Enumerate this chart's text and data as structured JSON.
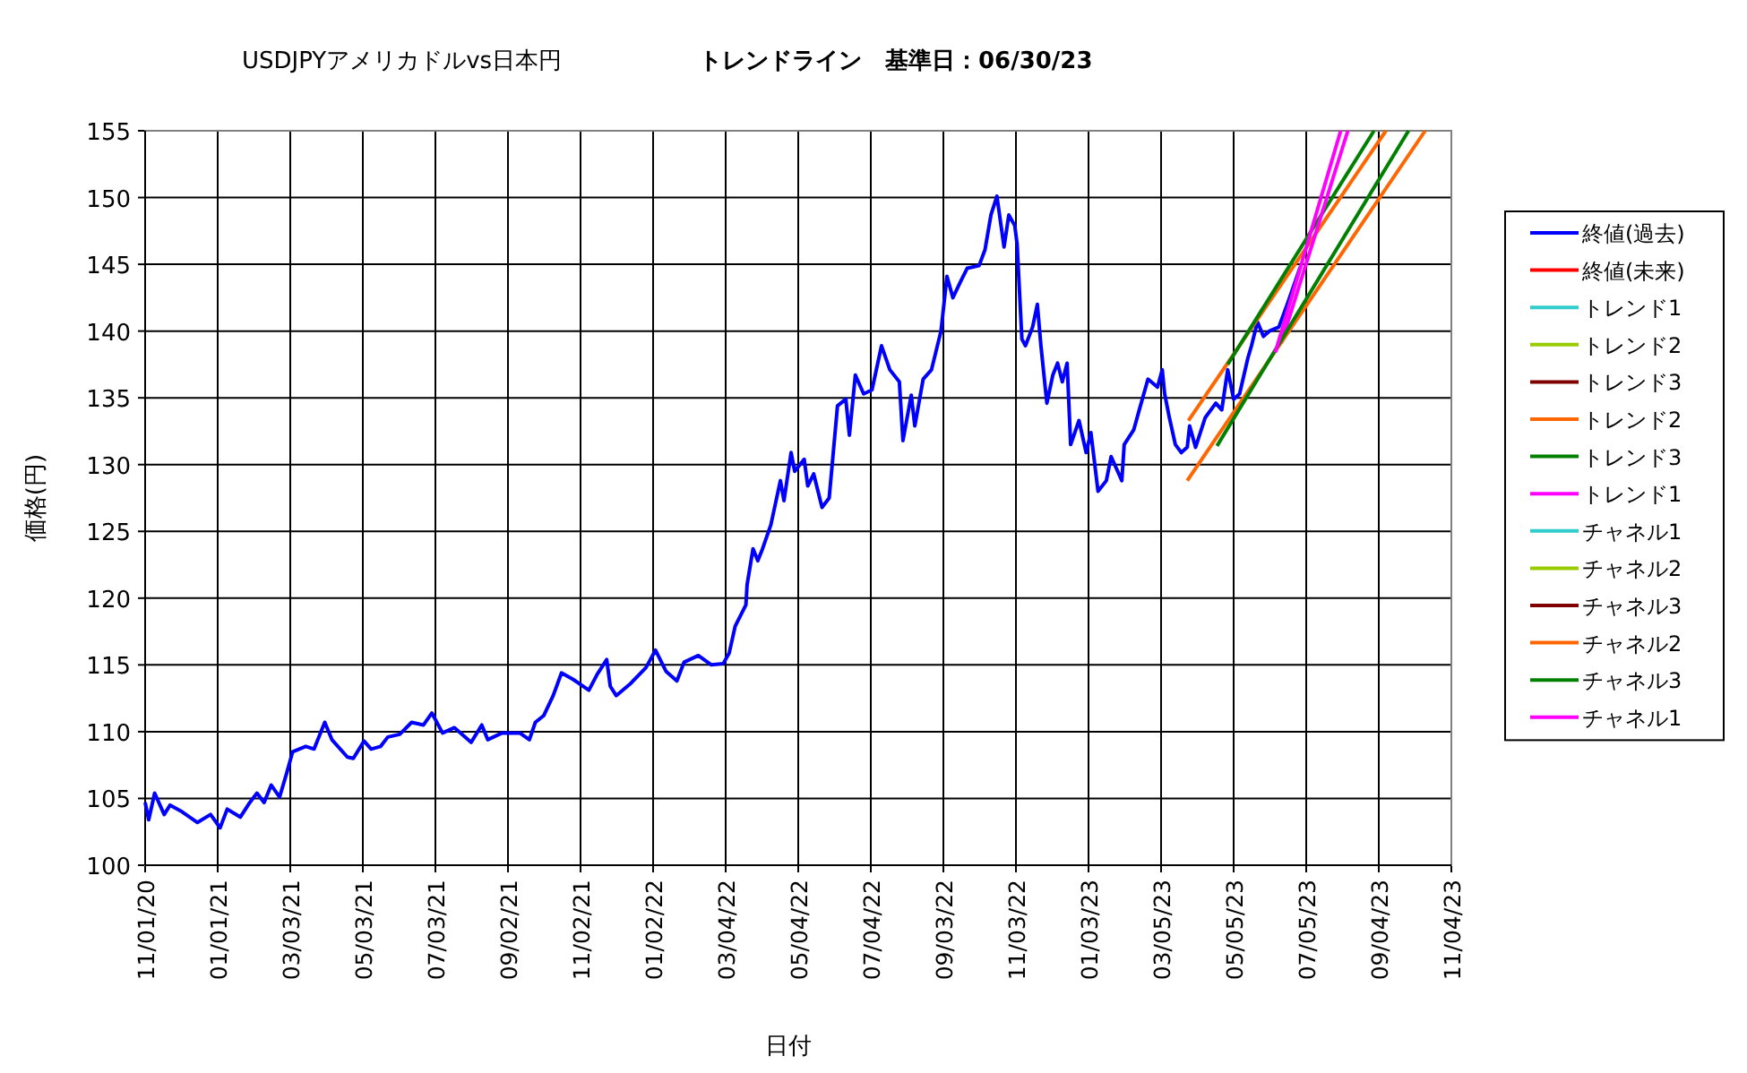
{
  "chart_data": {
    "type": "line",
    "title": "USDJPYアメリカドルvs日本円",
    "subtitle": "トレンドライン　基準日：06/30/23",
    "xlabel": "日付",
    "ylabel": "価格(円)",
    "xlim": [
      "2020-11-01",
      "2023-11-04"
    ],
    "ylim": [
      100,
      155
    ],
    "xticks": [
      {
        "value": "2020-11-01",
        "label": "11/01/20"
      },
      {
        "value": "2021-01-01",
        "label": "01/01/21"
      },
      {
        "value": "2021-03-03",
        "label": "03/03/21"
      },
      {
        "value": "2021-05-03",
        "label": "05/03/21"
      },
      {
        "value": "2021-07-03",
        "label": "07/03/21"
      },
      {
        "value": "2021-09-02",
        "label": "09/02/21"
      },
      {
        "value": "2021-11-02",
        "label": "11/02/21"
      },
      {
        "value": "2022-01-02",
        "label": "01/02/22"
      },
      {
        "value": "2022-03-04",
        "label": "03/04/22"
      },
      {
        "value": "2022-05-04",
        "label": "05/04/22"
      },
      {
        "value": "2022-07-04",
        "label": "07/04/22"
      },
      {
        "value": "2022-09-03",
        "label": "09/03/22"
      },
      {
        "value": "2022-11-03",
        "label": "11/03/22"
      },
      {
        "value": "2023-01-03",
        "label": "01/03/23"
      },
      {
        "value": "2023-03-05",
        "label": "03/05/23"
      },
      {
        "value": "2023-05-05",
        "label": "05/05/23"
      },
      {
        "value": "2023-07-05",
        "label": "07/05/23"
      },
      {
        "value": "2023-09-04",
        "label": "09/04/23"
      },
      {
        "value": "2023-11-04",
        "label": "11/04/23"
      }
    ],
    "yticks": [
      100,
      105,
      110,
      115,
      120,
      125,
      130,
      135,
      140,
      145,
      150,
      155
    ],
    "grid": true,
    "legend": "right",
    "marker": "none",
    "line_style": "solid",
    "series": [
      {
        "name": "終値(過去)",
        "color": "#0000ff",
        "x": [
          "2020-11-01",
          "2020-11-04",
          "2020-11-09",
          "2020-11-17",
          "2020-11-22",
          "2020-12-02",
          "2020-12-15",
          "2020-12-26",
          "2021-01-03",
          "2021-01-09",
          "2021-01-20",
          "2021-01-28",
          "2021-02-03",
          "2021-02-09",
          "2021-02-15",
          "2021-02-22",
          "2021-02-28",
          "2021-03-05",
          "2021-03-16",
          "2021-03-23",
          "2021-04-01",
          "2021-04-07",
          "2021-04-20",
          "2021-04-25",
          "2021-05-04",
          "2021-05-10",
          "2021-05-18",
          "2021-05-24",
          "2021-06-03",
          "2021-06-13",
          "2021-06-23",
          "2021-06-30",
          "2021-07-09",
          "2021-07-19",
          "2021-08-02",
          "2021-08-11",
          "2021-08-16",
          "2021-08-28",
          "2021-09-12",
          "2021-09-20",
          "2021-09-25",
          "2021-10-02",
          "2021-10-10",
          "2021-10-17",
          "2021-10-27",
          "2021-11-09",
          "2021-11-16",
          "2021-11-24",
          "2021-11-27",
          "2021-12-02",
          "2021-12-14",
          "2021-12-27",
          "2022-01-04",
          "2022-01-13",
          "2022-01-22",
          "2022-01-28",
          "2022-02-09",
          "2022-02-20",
          "2022-03-02",
          "2022-03-07",
          "2022-03-12",
          "2022-03-21",
          "2022-03-22",
          "2022-03-27",
          "2022-03-31",
          "2022-04-04",
          "2022-04-11",
          "2022-04-19",
          "2022-04-22",
          "2022-04-28",
          "2022-05-01",
          "2022-05-09",
          "2022-05-12",
          "2022-05-17",
          "2022-05-24",
          "2022-05-30",
          "2022-06-06",
          "2022-06-13",
          "2022-06-16",
          "2022-06-21",
          "2022-06-28",
          "2022-07-05",
          "2022-07-13",
          "2022-07-20",
          "2022-07-28",
          "2022-07-31",
          "2022-08-07",
          "2022-08-10",
          "2022-08-17",
          "2022-08-24",
          "2022-09-01",
          "2022-09-06",
          "2022-09-11",
          "2022-09-18",
          "2022-09-23",
          "2022-10-03",
          "2022-10-08",
          "2022-10-13",
          "2022-10-18",
          "2022-10-24",
          "2022-10-28",
          "2022-11-02",
          "2022-11-04",
          "2022-11-08",
          "2022-11-11",
          "2022-11-17",
          "2022-11-21",
          "2022-11-24",
          "2022-11-29",
          "2022-12-04",
          "2022-12-08",
          "2022-12-12",
          "2022-12-16",
          "2022-12-19",
          "2022-12-26",
          "2023-01-01",
          "2023-01-05",
          "2023-01-11",
          "2023-01-18",
          "2023-01-22",
          "2023-01-31",
          "2023-02-02",
          "2023-02-10",
          "2023-02-15",
          "2023-02-22",
          "2023-03-02",
          "2023-03-06",
          "2023-03-08",
          "2023-03-12",
          "2023-03-17",
          "2023-03-22",
          "2023-03-27",
          "2023-03-29",
          "2023-04-03",
          "2023-04-11",
          "2023-04-20",
          "2023-04-25",
          "2023-04-30",
          "2023-05-05",
          "2023-05-10",
          "2023-05-17",
          "2023-05-20",
          "2023-05-25",
          "2023-05-30",
          "2023-06-04",
          "2023-06-12",
          "2023-06-19",
          "2023-06-30"
        ],
        "values": [
          104.7,
          103.4,
          105.4,
          103.8,
          104.5,
          104.0,
          103.2,
          103.8,
          102.8,
          104.2,
          103.6,
          104.7,
          105.4,
          104.7,
          106.0,
          105.1,
          106.9,
          108.5,
          108.9,
          108.7,
          110.7,
          109.4,
          108.1,
          108.0,
          109.3,
          108.7,
          108.9,
          109.6,
          109.8,
          110.7,
          110.5,
          111.4,
          109.9,
          110.3,
          109.2,
          110.5,
          109.4,
          109.9,
          109.9,
          109.4,
          110.7,
          111.2,
          112.7,
          114.4,
          113.9,
          113.1,
          114.3,
          115.4,
          113.4,
          112.7,
          113.6,
          114.8,
          116.1,
          114.5,
          113.8,
          115.2,
          115.7,
          115.0,
          115.1,
          115.9,
          117.9,
          119.5,
          121.0,
          123.7,
          122.8,
          123.7,
          125.5,
          128.8,
          127.3,
          130.9,
          129.5,
          130.4,
          128.4,
          129.3,
          126.8,
          127.5,
          134.4,
          134.9,
          132.2,
          136.7,
          135.3,
          135.6,
          138.9,
          137.1,
          136.2,
          131.8,
          135.2,
          132.9,
          136.4,
          137.1,
          140.0,
          144.1,
          142.5,
          143.8,
          144.7,
          144.9,
          146.1,
          148.7,
          150.1,
          146.3,
          148.7,
          147.9,
          146.5,
          139.4,
          138.9,
          140.3,
          142.0,
          138.9,
          134.6,
          136.7,
          137.6,
          136.2,
          137.6,
          131.5,
          133.3,
          130.9,
          132.4,
          128.0,
          128.8,
          130.6,
          128.8,
          131.5,
          132.6,
          134.2,
          136.4,
          135.8,
          137.1,
          135.3,
          133.5,
          131.5,
          130.9,
          131.3,
          132.9,
          131.3,
          133.5,
          134.6,
          134.1,
          137.1,
          134.9,
          135.3,
          138.0,
          138.9,
          140.7,
          139.6,
          140.0,
          140.3,
          142.0,
          144.8
        ]
      },
      {
        "name": "終値(未来)",
        "color": "#ff0000"
      },
      {
        "name": "トレンド1",
        "color": "#33cccc"
      },
      {
        "name": "トレンド2",
        "color": "#99cc00"
      },
      {
        "name": "トレンド3",
        "color": "#800000"
      },
      {
        "name": "トレンド2",
        "color": "#ff6600",
        "x": [
          "2023-03-28",
          "2023-09-10"
        ],
        "values": [
          133.3,
          155
        ]
      },
      {
        "name": "トレンド3",
        "color": "#008000",
        "x": [
          "2023-04-30",
          "2023-08-31"
        ],
        "values": [
          137.5,
          155
        ]
      },
      {
        "name": "トレンド1",
        "color": "#ff00ff",
        "x": [
          "2023-06-14",
          "2023-08-09"
        ],
        "values": [
          139.1,
          155
        ]
      },
      {
        "name": "チャネル1",
        "color": "#33cccc"
      },
      {
        "name": "チャネル2",
        "color": "#99cc00"
      },
      {
        "name": "チャネル3",
        "color": "#800000"
      },
      {
        "name": "チャネル2",
        "color": "#ff6600",
        "x": [
          "2023-03-27",
          "2023-10-13"
        ],
        "values": [
          128.8,
          155
        ]
      },
      {
        "name": "チャネル3",
        "color": "#008000",
        "x": [
          "2023-04-21",
          "2023-09-29"
        ],
        "values": [
          131.4,
          155
        ]
      },
      {
        "name": "チャネル1",
        "color": "#ff00ff",
        "x": [
          "2023-06-09",
          "2023-08-03"
        ],
        "values": [
          138.4,
          155
        ]
      }
    ]
  }
}
